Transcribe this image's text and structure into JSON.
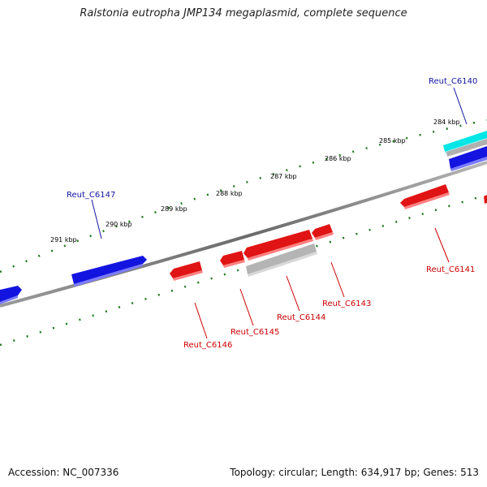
{
  "title": "Ralstonia eutropha JMP134 megaplasmid, complete sequence",
  "accession": "Accession: NC_007336",
  "summary": "Topology: circular; Length: 634,917 bp; Genes: 513",
  "colors": {
    "forward": "#1414e0",
    "reverse": "#e01414",
    "grey": "#a8a8a8",
    "cyan": "#00e5e5",
    "tick": "#1f7a1f",
    "backbone": "#6e6e6e"
  },
  "kbp_labels": [
    "284 kbp",
    "285 kbp",
    "286 kbp",
    "287 kbp",
    "288 kbp",
    "289 kbp",
    "290 kbp",
    "291 kbp"
  ],
  "gene_labels": {
    "c6140": "Reut_C6140",
    "c6141": "Reut_C6141",
    "c6143": "Reut_C6143",
    "c6144": "Reut_C6144",
    "c6145": "Reut_C6145",
    "c6146": "Reut_C6146",
    "c6147": "Reut_C6147"
  }
}
